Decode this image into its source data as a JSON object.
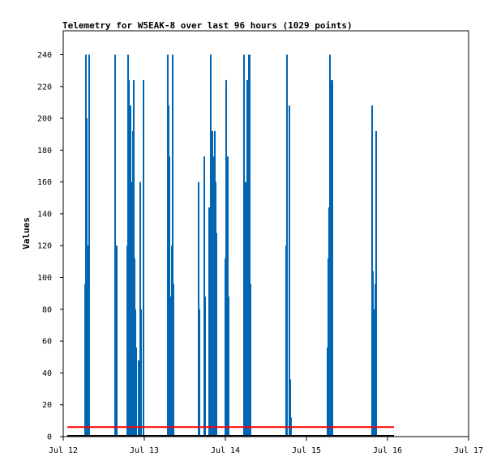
{
  "chart_data": {
    "type": "bar",
    "title": "Telemetry for W5EAK-8 over last 96 hours (1029 points)",
    "xlabel": "",
    "ylabel": "Values",
    "x_ticks": [
      "Jul 12",
      "Jul 13",
      "Jul 14",
      "Jul 15",
      "Jul 16",
      "Jul 17"
    ],
    "y_ticks": [
      0,
      20,
      40,
      60,
      80,
      100,
      120,
      140,
      160,
      180,
      200,
      220,
      240
    ],
    "xlim": [
      0,
      5
    ],
    "ylim": [
      0,
      255
    ],
    "grid": false,
    "legend": "none",
    "colors": {
      "bars": "#0066b3",
      "red_line": "#ff0000",
      "black_line": "#000000",
      "frame": "#000000"
    },
    "red_line_value": 6,
    "red_line_x": [
      0.05,
      4.08
    ],
    "black_line_value": 0,
    "black_line_x": [
      0.05,
      4.08
    ],
    "bars": [
      {
        "x": 0.27,
        "y": 96
      },
      {
        "x": 0.28,
        "y": 240
      },
      {
        "x": 0.29,
        "y": 200
      },
      {
        "x": 0.31,
        "y": 120
      },
      {
        "x": 0.32,
        "y": 240
      },
      {
        "x": 0.64,
        "y": 240
      },
      {
        "x": 0.66,
        "y": 120
      },
      {
        "x": 0.79,
        "y": 120
      },
      {
        "x": 0.8,
        "y": 240
      },
      {
        "x": 0.81,
        "y": 224
      },
      {
        "x": 0.82,
        "y": 208
      },
      {
        "x": 0.83,
        "y": 208
      },
      {
        "x": 0.84,
        "y": 120
      },
      {
        "x": 0.85,
        "y": 160
      },
      {
        "x": 0.86,
        "y": 192
      },
      {
        "x": 0.87,
        "y": 224
      },
      {
        "x": 0.88,
        "y": 112
      },
      {
        "x": 0.89,
        "y": 80
      },
      {
        "x": 0.9,
        "y": 56
      },
      {
        "x": 0.93,
        "y": 48
      },
      {
        "x": 0.95,
        "y": 160
      },
      {
        "x": 0.96,
        "y": 80
      },
      {
        "x": 0.99,
        "y": 224
      },
      {
        "x": 1.29,
        "y": 240
      },
      {
        "x": 1.3,
        "y": 208
      },
      {
        "x": 1.31,
        "y": 176
      },
      {
        "x": 1.32,
        "y": 88
      },
      {
        "x": 1.34,
        "y": 120
      },
      {
        "x": 1.35,
        "y": 240
      },
      {
        "x": 1.36,
        "y": 96
      },
      {
        "x": 1.67,
        "y": 160
      },
      {
        "x": 1.68,
        "y": 80
      },
      {
        "x": 1.74,
        "y": 176
      },
      {
        "x": 1.75,
        "y": 88
      },
      {
        "x": 1.8,
        "y": 144
      },
      {
        "x": 1.81,
        "y": 120
      },
      {
        "x": 1.82,
        "y": 240
      },
      {
        "x": 1.83,
        "y": 176
      },
      {
        "x": 1.84,
        "y": 192
      },
      {
        "x": 1.85,
        "y": 144
      },
      {
        "x": 1.86,
        "y": 176
      },
      {
        "x": 1.87,
        "y": 192
      },
      {
        "x": 1.88,
        "y": 160
      },
      {
        "x": 1.89,
        "y": 128
      },
      {
        "x": 2.0,
        "y": 112
      },
      {
        "x": 2.01,
        "y": 224
      },
      {
        "x": 2.02,
        "y": 88
      },
      {
        "x": 2.03,
        "y": 176
      },
      {
        "x": 2.04,
        "y": 88
      },
      {
        "x": 2.23,
        "y": 240
      },
      {
        "x": 2.24,
        "y": 120
      },
      {
        "x": 2.25,
        "y": 160
      },
      {
        "x": 2.26,
        "y": 112
      },
      {
        "x": 2.27,
        "y": 224
      },
      {
        "x": 2.28,
        "y": 128
      },
      {
        "x": 2.29,
        "y": 240
      },
      {
        "x": 2.3,
        "y": 240
      },
      {
        "x": 2.31,
        "y": 96
      },
      {
        "x": 2.75,
        "y": 120
      },
      {
        "x": 2.76,
        "y": 240
      },
      {
        "x": 2.79,
        "y": 208
      },
      {
        "x": 2.8,
        "y": 36
      },
      {
        "x": 2.81,
        "y": 12
      },
      {
        "x": 3.26,
        "y": 56
      },
      {
        "x": 3.27,
        "y": 112
      },
      {
        "x": 3.28,
        "y": 144
      },
      {
        "x": 3.29,
        "y": 240
      },
      {
        "x": 3.3,
        "y": 224
      },
      {
        "x": 3.31,
        "y": 112
      },
      {
        "x": 3.32,
        "y": 224
      },
      {
        "x": 3.81,
        "y": 208
      },
      {
        "x": 3.82,
        "y": 104
      },
      {
        "x": 3.84,
        "y": 80
      },
      {
        "x": 3.85,
        "y": 96
      },
      {
        "x": 3.86,
        "y": 192
      }
    ]
  }
}
